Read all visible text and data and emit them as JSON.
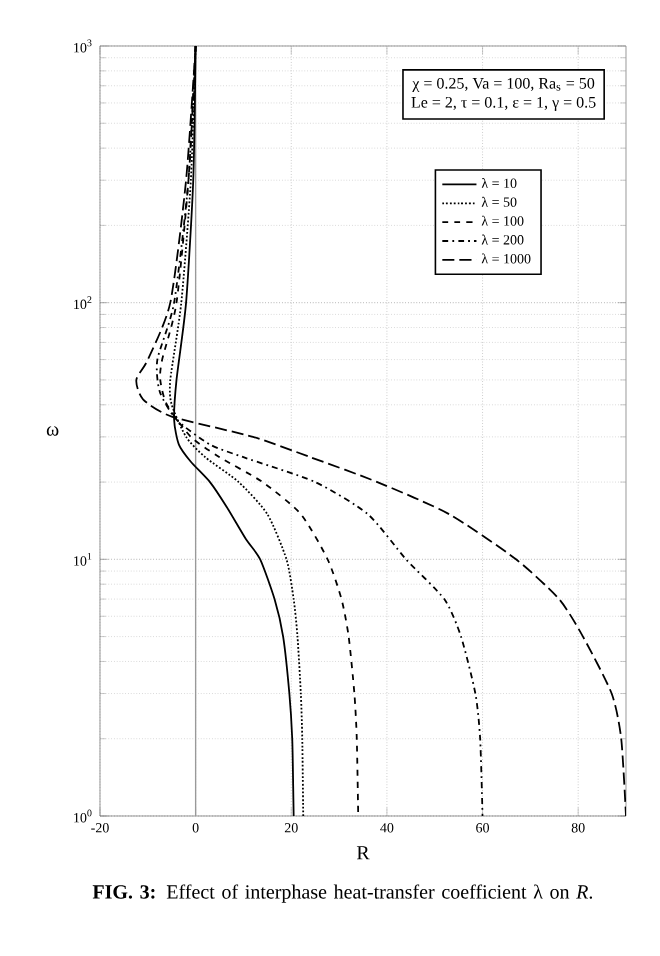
{
  "chart_data": {
    "type": "line",
    "xlabel": "R",
    "ylabel": "ω",
    "xlim": [
      -20,
      90
    ],
    "xticks": [
      -20,
      0,
      20,
      40,
      60,
      80
    ],
    "ylim": [
      1,
      1000
    ],
    "yticks": [
      {
        "value": 1,
        "label": "10$^{0}$"
      },
      {
        "value": 10,
        "label": "10$^{1}$"
      },
      {
        "value": 100,
        "label": "10$^{2}$"
      },
      {
        "value": 1000,
        "label": "10$^{3}$"
      }
    ],
    "log": "y",
    "grid": true,
    "legend": "top right",
    "ref_lines": [
      {
        "axis": "x",
        "value": 0,
        "color": "#999999"
      }
    ],
    "annotations": [
      "χ = 0.25, Va = 100, Ra$_{s}$ = 50",
      "Le = 2, τ = 0.1, ε = 1, γ = 0.5",
      "**FIG. 3:** Effect of interphase heat-transfer coefficient λ on *R*."
    ],
    "series": [
      {
        "name": "λ = 10",
        "color": "#000000",
        "line_style": "solid",
        "x": [
          0,
          -0.5,
          -2,
          -4,
          -4.5,
          -3.5,
          -1,
          3,
          6.5,
          10.5,
          13.5,
          16.5,
          18.3,
          19.6,
          20.2,
          20.4,
          20.5
        ],
        "values": [
          1000,
          300,
          100,
          50,
          35,
          28,
          24,
          20,
          16,
          12,
          10,
          7,
          5,
          3,
          2,
          1.3,
          1
        ]
      },
      {
        "name": "λ = 50",
        "color": "#000000",
        "line_style": "dotted",
        "x": [
          0,
          -1,
          -3,
          -5.3,
          -5,
          -2,
          2,
          9,
          15,
          19,
          20.5,
          21.3,
          22,
          22.3,
          22.5
        ],
        "values": [
          1000,
          300,
          100,
          50,
          40,
          30,
          25,
          20,
          15,
          10,
          7,
          5,
          3,
          2,
          1
        ]
      },
      {
        "name": "λ = 100",
        "color": "#000000",
        "line_style": "dashed",
        "x": [
          0,
          -1.5,
          -4,
          -7,
          -7.4,
          -6,
          -1,
          5,
          14,
          22,
          27.6,
          30.5,
          32,
          33.2,
          33.7,
          34
        ],
        "values": [
          1000,
          300,
          100,
          60,
          50,
          40,
          30,
          25,
          20,
          15,
          10,
          7,
          5,
          3,
          2,
          1
        ]
      },
      {
        "name": "λ = 200",
        "color": "#000000",
        "line_style": "dashdot",
        "x": [
          0,
          -1.5,
          -4.5,
          -8,
          -7.5,
          -4,
          3,
          10,
          25,
          36,
          44,
          52,
          55.5,
          58.5,
          59.5,
          60
        ],
        "values": [
          1000,
          300,
          100,
          60,
          45,
          35,
          28,
          25,
          20,
          15,
          10,
          7,
          5,
          3,
          2,
          1
        ]
      },
      {
        "name": "λ = 1000",
        "color": "#000000",
        "line_style": "longdash",
        "x": [
          0,
          -2,
          -5.3,
          -10,
          -12.4,
          -11,
          -5,
          12,
          24,
          38,
          53,
          67,
          76,
          81,
          87,
          89,
          90
        ],
        "values": [
          1000,
          300,
          100,
          60,
          50,
          42,
          36,
          30,
          25,
          20,
          15,
          10,
          7,
          5,
          3,
          2,
          1
        ]
      }
    ]
  }
}
